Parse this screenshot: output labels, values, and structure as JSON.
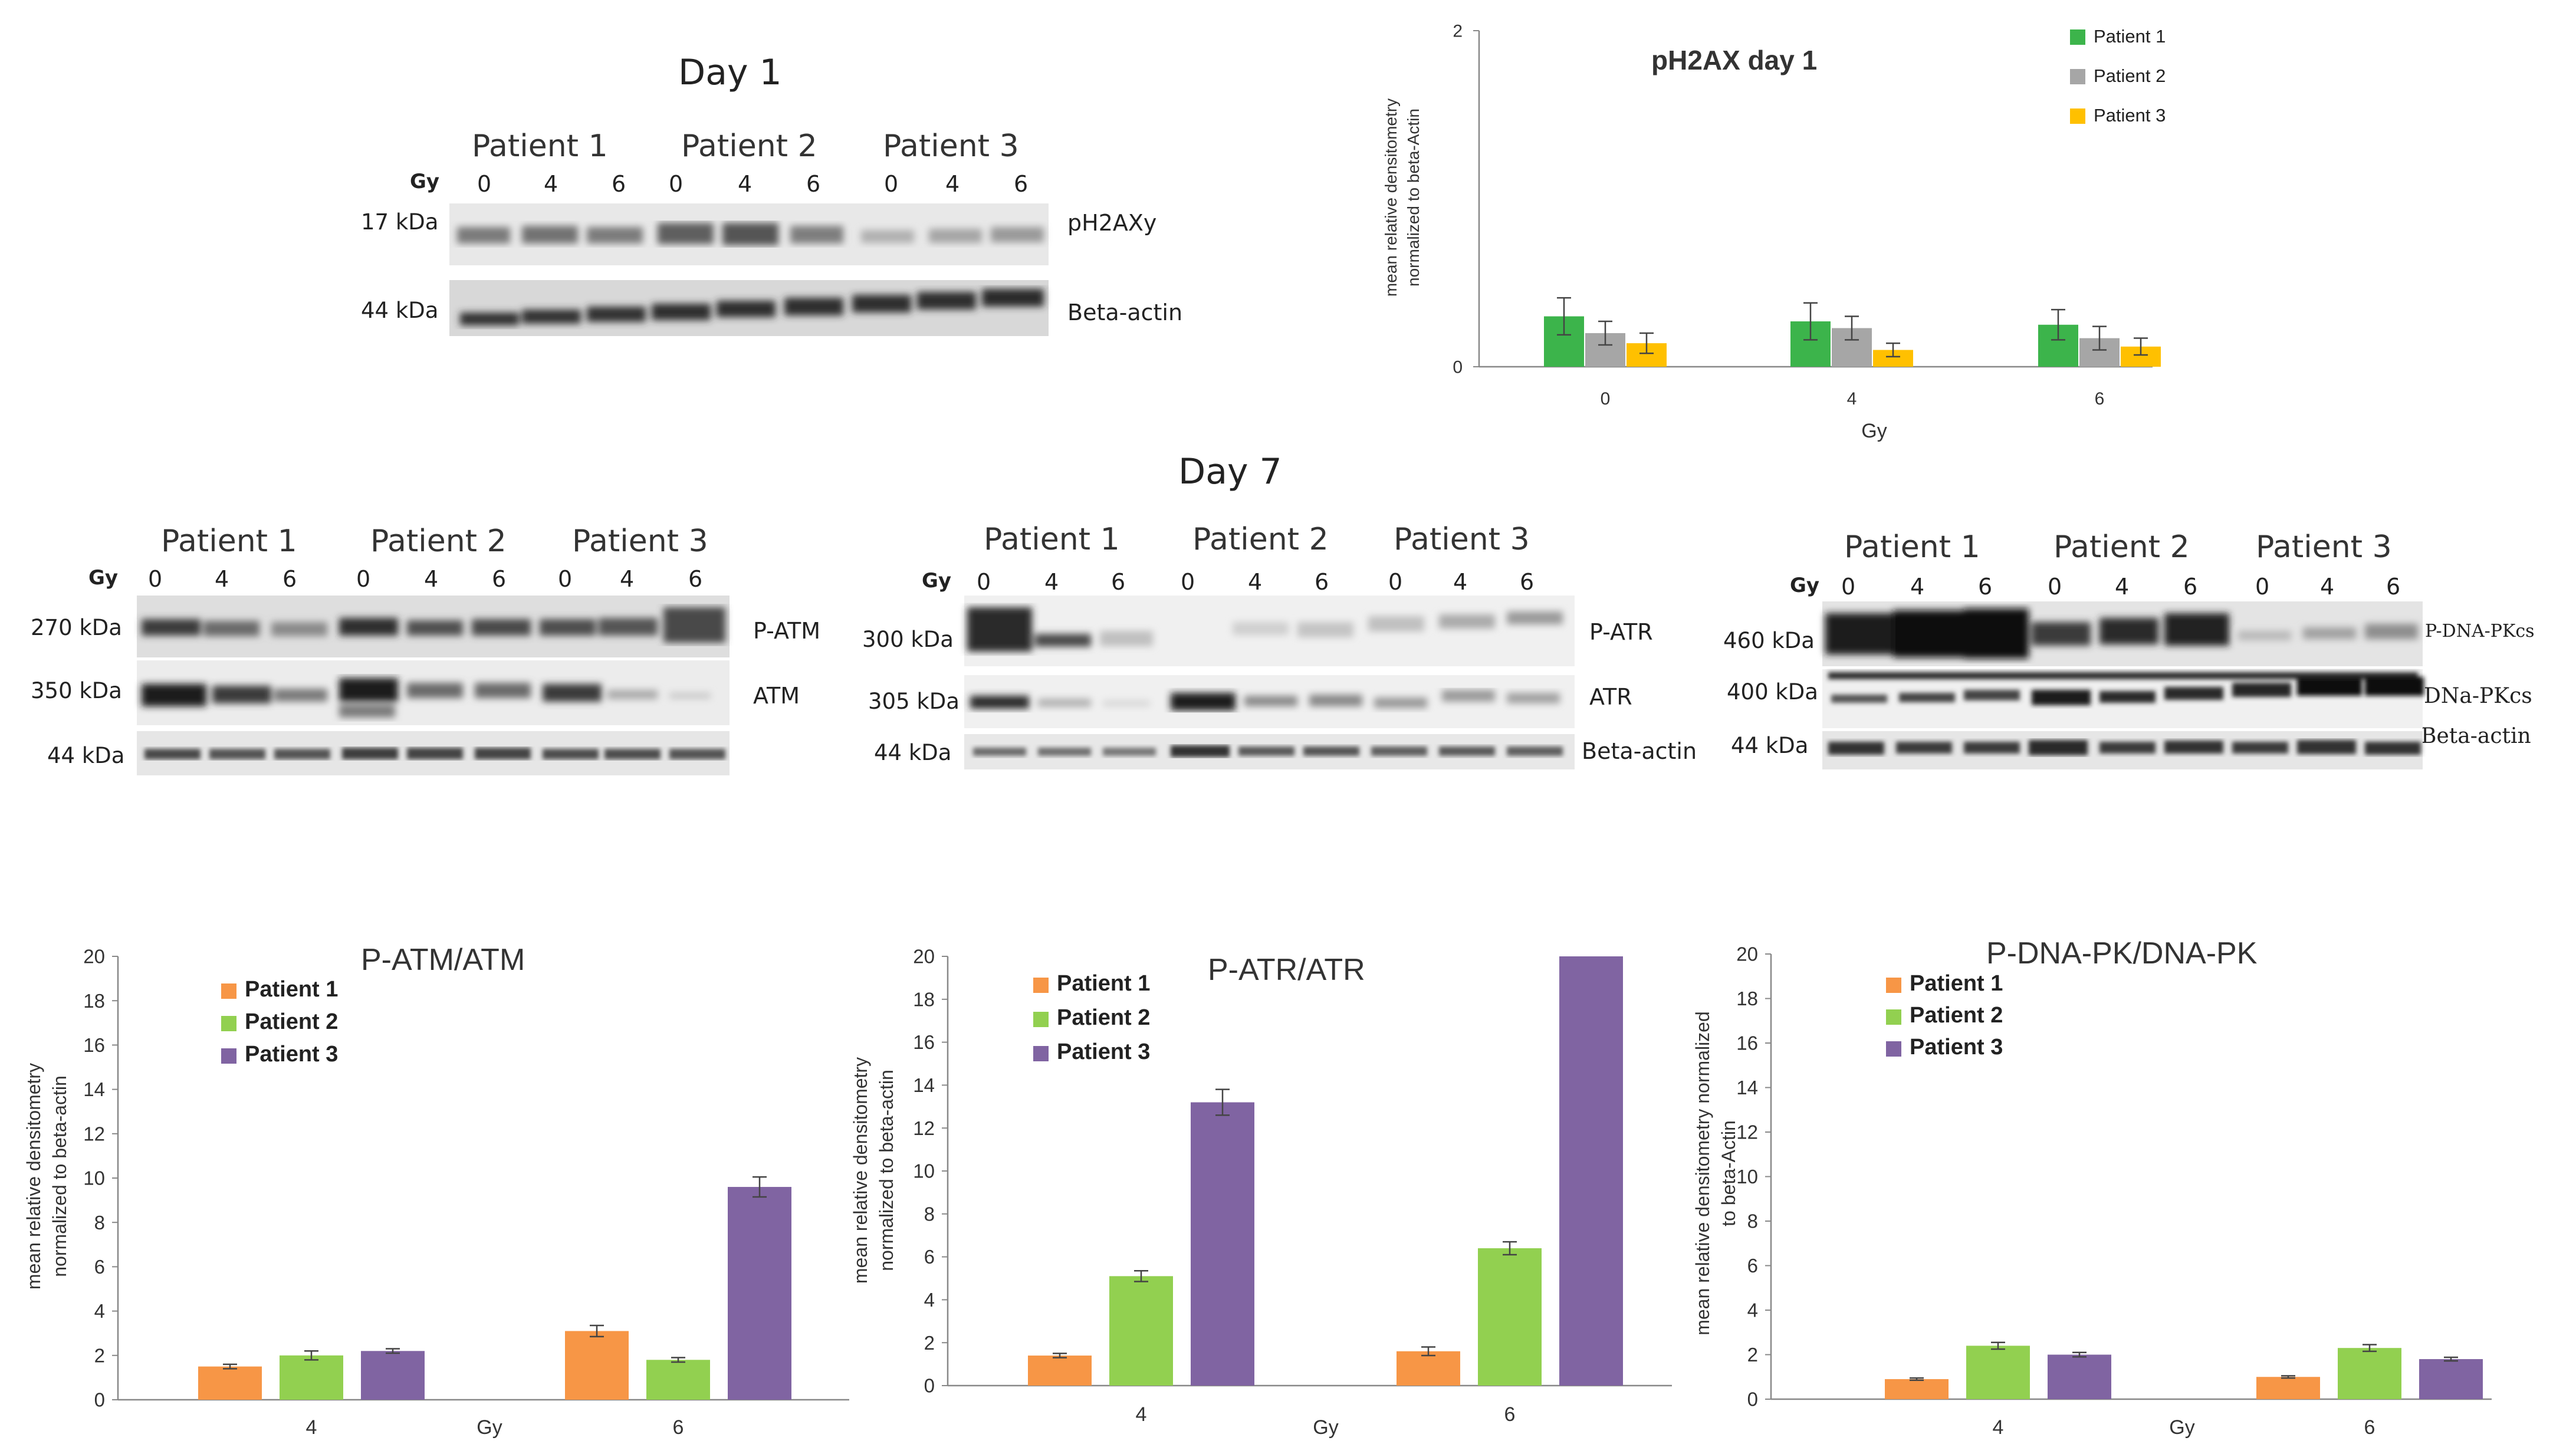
{
  "blots": {
    "day1": {
      "title": "Day 1",
      "gy_label": "Gy",
      "patients": [
        "Patient 1",
        "Patient 2",
        "Patient 3"
      ],
      "doses": [
        "0",
        "4",
        "6",
        "0",
        "4",
        "6",
        "0",
        "4",
        "6"
      ],
      "rows": [
        {
          "kda": "17 kDa",
          "protein": "pH2AXy"
        },
        {
          "kda": "44 kDa",
          "protein": "Beta-actin"
        }
      ]
    },
    "day7_title": "Day 7",
    "day7": [
      {
        "gy_label": "Gy",
        "patients": [
          "Patient 1",
          "Patient 2",
          "Patient 3"
        ],
        "doses": [
          "0",
          "4",
          "6",
          "0",
          "4",
          "6",
          "0",
          "4",
          "6"
        ],
        "rows": [
          {
            "kda": "270 kDa",
            "protein": "P-ATM"
          },
          {
            "kda": "350 kDa",
            "protein": "ATM"
          },
          {
            "kda": "44 kDa",
            "protein": ""
          }
        ]
      },
      {
        "gy_label": "Gy",
        "patients": [
          "Patient 1",
          "Patient 2",
          "Patient 3"
        ],
        "doses": [
          "0",
          "4",
          "6",
          "0",
          "4",
          "6",
          "0",
          "4",
          "6"
        ],
        "rows": [
          {
            "kda": "300 kDa",
            "protein": "P-ATR"
          },
          {
            "kda": "305 kDa",
            "protein": "ATR"
          },
          {
            "kda": "44 kDa",
            "protein": "Beta-actin"
          }
        ]
      },
      {
        "gy_label": "Gy",
        "patients": [
          "Patient 1",
          "Patient 2",
          "Patient 3"
        ],
        "doses": [
          "0",
          "4",
          "6",
          "0",
          "4",
          "6",
          "0",
          "4",
          "6"
        ],
        "rows": [
          {
            "kda": "460 kDa",
            "protein": "P-DNA-PKcs"
          },
          {
            "kda": "400 kDa",
            "protein": "DNa-PKcs"
          },
          {
            "kda": "44 kDa",
            "protein": "Beta-actin"
          }
        ]
      }
    ]
  },
  "chart_data": [
    {
      "type": "bar",
      "title": "pH2AX day 1",
      "xlabel": "Gy",
      "ylabel": "mean relative densitometry normalized to beta-Actin",
      "categories": [
        "0",
        "4",
        "6"
      ],
      "ylim": [
        0,
        2
      ],
      "yticks": [
        0,
        2
      ],
      "legend_position": "top-right",
      "series": [
        {
          "name": "Patient 1",
          "color": "#3cb44b",
          "values": [
            0.3,
            0.27,
            0.25
          ],
          "errors": [
            0.11,
            0.11,
            0.09
          ]
        },
        {
          "name": "Patient 2",
          "color": "#a6a6a6",
          "values": [
            0.2,
            0.23,
            0.17
          ],
          "errors": [
            0.07,
            0.07,
            0.07
          ]
        },
        {
          "name": "Patient 3",
          "color": "#ffc000",
          "values": [
            0.14,
            0.1,
            0.12
          ],
          "errors": [
            0.06,
            0.04,
            0.05
          ]
        }
      ]
    },
    {
      "type": "bar",
      "title": "P-ATM/ATM",
      "xlabel": "Gy",
      "ylabel": "mean relative densitometry normalized to beta-actin",
      "categories": [
        "4",
        "6"
      ],
      "ylim": [
        0,
        20
      ],
      "yticks": [
        0,
        2,
        4,
        6,
        8,
        10,
        12,
        14,
        16,
        18,
        20
      ],
      "legend_position": "top-left",
      "series": [
        {
          "name": "Patient 1",
          "color": "#f79646",
          "values": [
            1.5,
            3.1
          ],
          "errors": [
            0.1,
            0.25
          ]
        },
        {
          "name": "Patient 2",
          "color": "#92d050",
          "values": [
            2.0,
            1.8
          ],
          "errors": [
            0.2,
            0.1
          ]
        },
        {
          "name": "Patient 3",
          "color": "#8064a2",
          "values": [
            2.2,
            9.6
          ],
          "errors": [
            0.1,
            0.45
          ]
        }
      ]
    },
    {
      "type": "bar",
      "title": "P-ATR/ATR",
      "xlabel": "Gy",
      "ylabel": "mean relative densitometry normalized to beta-actin",
      "categories": [
        "4",
        "6"
      ],
      "ylim": [
        0,
        20
      ],
      "yticks": [
        0,
        2,
        4,
        6,
        8,
        10,
        12,
        14,
        16,
        18,
        20
      ],
      "legend_position": "top-left",
      "series": [
        {
          "name": "Patient 1",
          "color": "#f79646",
          "values": [
            1.4,
            1.6
          ],
          "errors": [
            0.1,
            0.2
          ]
        },
        {
          "name": "Patient 2",
          "color": "#92d050",
          "values": [
            5.1,
            6.4
          ],
          "errors": [
            0.25,
            0.3
          ]
        },
        {
          "name": "Patient 3",
          "color": "#8064a2",
          "values": [
            13.2,
            20.0
          ],
          "errors": [
            0.6,
            0
          ]
        }
      ]
    },
    {
      "type": "bar",
      "title": "P-DNA-PK/DNA-PK",
      "xlabel": "Gy",
      "ylabel": "mean relative densitometry normalized to beta-Actin",
      "categories": [
        "4",
        "6"
      ],
      "ylim": [
        0,
        20
      ],
      "yticks": [
        0,
        2,
        4,
        6,
        8,
        10,
        12,
        14,
        16,
        18,
        20
      ],
      "legend_position": "top-left",
      "series": [
        {
          "name": "Patient 1",
          "color": "#f79646",
          "values": [
            0.9,
            1.0
          ],
          "errors": [
            0.05,
            0.05
          ]
        },
        {
          "name": "Patient 2",
          "color": "#92d050",
          "values": [
            2.4,
            2.3
          ],
          "errors": [
            0.15,
            0.15
          ]
        },
        {
          "name": "Patient 3",
          "color": "#8064a2",
          "values": [
            2.0,
            1.8
          ],
          "errors": [
            0.1,
            0.08
          ]
        }
      ]
    }
  ]
}
